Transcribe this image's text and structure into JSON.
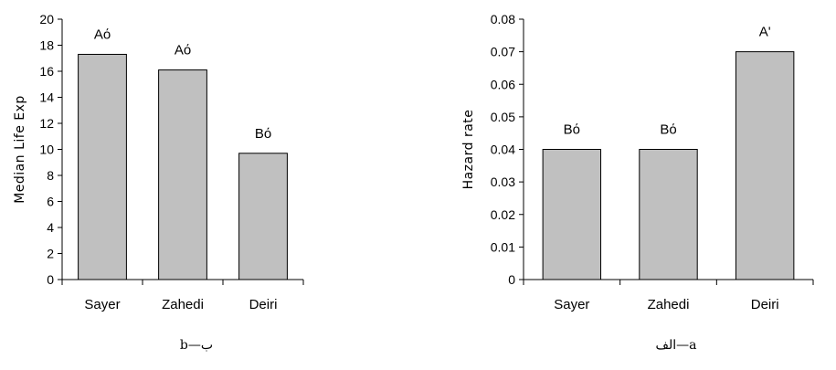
{
  "chart_data": [
    {
      "type": "bar",
      "categories": [
        "Sayer",
        "Zahedi",
        "Deiri"
      ],
      "values": [
        17.3,
        16.1,
        9.7
      ],
      "bar_labels": [
        "Aό",
        "Aό",
        "Bό"
      ],
      "ylabel": "Median Life Exp",
      "xlabel": "",
      "ylim": [
        0,
        20
      ],
      "yticks": [
        "0",
        "2",
        "4",
        "6",
        "8",
        "10",
        "12",
        "14",
        "16",
        "18",
        "20"
      ],
      "ytick_values": [
        0,
        2,
        4,
        6,
        8,
        10,
        12,
        14,
        16,
        18,
        20
      ],
      "caption": "b—ب",
      "grid": false,
      "bar_color": "#c0c0c0"
    },
    {
      "type": "bar",
      "categories": [
        "Sayer",
        "Zahedi",
        "Deiri"
      ],
      "values": [
        0.04,
        0.04,
        0.07
      ],
      "bar_labels": [
        "Bό",
        "Bό",
        "A'"
      ],
      "ylabel": "Hazard rate",
      "xlabel": "",
      "ylim": [
        0,
        0.08
      ],
      "yticks": [
        "0",
        "0.01",
        "0.02",
        "0.03",
        "0.04",
        "0.05",
        "0.06",
        "0.07",
        "0.08"
      ],
      "ytick_values": [
        0,
        0.01,
        0.02,
        0.03,
        0.04,
        0.05,
        0.06,
        0.07,
        0.08
      ],
      "caption": "الف—a",
      "grid": false,
      "bar_color": "#c0c0c0"
    }
  ]
}
